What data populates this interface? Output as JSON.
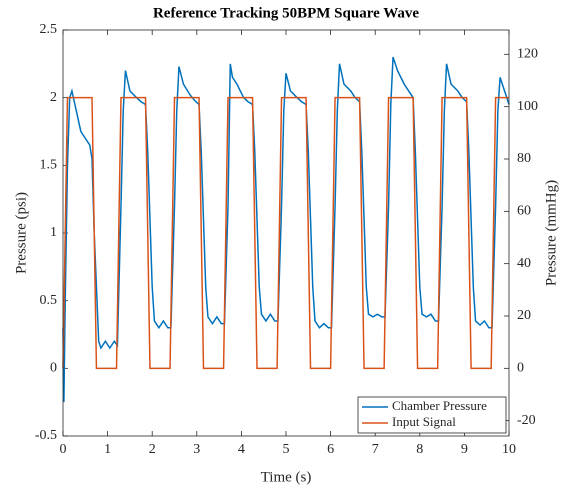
{
  "chart_data": {
    "type": "line",
    "title": "Reference Tracking 50BPM Square Wave",
    "xlabel": "Time (s)",
    "ylabel": "Pressure (psi)",
    "y2label": "Pressure (mmHg)",
    "xlim": [
      0,
      10
    ],
    "xticks": [
      0,
      1,
      2,
      3,
      4,
      5,
      6,
      7,
      8,
      9,
      10
    ],
    "ylim": [
      -0.5,
      2.5
    ],
    "yticks": [
      -0.5,
      0,
      0.5,
      1,
      1.5,
      2,
      2.5
    ],
    "y2lim": [
      -25.86,
      129.29
    ],
    "y2ticks": [
      -20,
      0,
      20,
      40,
      60,
      80,
      100,
      120
    ],
    "legend": "southeast",
    "grid": false,
    "series": [
      {
        "name": "Chamber Pressure",
        "color": "#0072BD",
        "x": [
          0,
          0.02,
          0.05,
          0.1,
          0.15,
          0.2,
          0.3,
          0.4,
          0.5,
          0.6,
          0.65,
          0.7,
          0.8,
          0.85,
          0.95,
          1.05,
          1.15,
          1.22,
          1.3,
          1.35,
          1.4,
          1.5,
          1.65,
          1.75,
          1.85,
          1.9,
          2.0,
          2.05,
          2.15,
          2.25,
          2.35,
          2.42,
          2.5,
          2.55,
          2.6,
          2.7,
          2.85,
          2.95,
          3.05,
          3.1,
          3.2,
          3.25,
          3.35,
          3.45,
          3.55,
          3.62,
          3.7,
          3.75,
          3.8,
          3.9,
          4.05,
          4.15,
          4.25,
          4.3,
          4.4,
          4.45,
          4.55,
          4.65,
          4.75,
          4.82,
          4.9,
          4.95,
          5.0,
          5.1,
          5.25,
          5.35,
          5.45,
          5.5,
          5.6,
          5.65,
          5.75,
          5.85,
          5.95,
          6.02,
          6.1,
          6.15,
          6.2,
          6.3,
          6.45,
          6.55,
          6.65,
          6.7,
          6.8,
          6.85,
          6.95,
          7.05,
          7.15,
          7.22,
          7.3,
          7.35,
          7.4,
          7.5,
          7.65,
          7.75,
          7.85,
          7.9,
          8.0,
          8.05,
          8.15,
          8.25,
          8.35,
          8.42,
          8.5,
          8.55,
          8.6,
          8.7,
          8.85,
          8.95,
          9.05,
          9.1,
          9.2,
          9.25,
          9.35,
          9.45,
          9.55,
          9.62,
          9.7,
          9.75,
          9.8,
          9.9,
          10
        ],
        "values": [
          0.3,
          -0.25,
          0.5,
          1.5,
          2.0,
          2.05,
          1.9,
          1.75,
          1.7,
          1.65,
          1.55,
          1.0,
          0.2,
          0.15,
          0.2,
          0.15,
          0.2,
          0.17,
          1.2,
          1.9,
          2.2,
          2.05,
          2.0,
          1.97,
          1.95,
          1.6,
          0.6,
          0.35,
          0.3,
          0.35,
          0.3,
          0.3,
          1.2,
          1.9,
          2.23,
          2.1,
          2.02,
          1.98,
          1.95,
          1.6,
          0.6,
          0.38,
          0.33,
          0.38,
          0.33,
          0.33,
          1.2,
          2.25,
          2.15,
          2.1,
          2.0,
          1.97,
          1.95,
          1.6,
          0.6,
          0.4,
          0.35,
          0.4,
          0.35,
          0.35,
          1.2,
          1.9,
          2.18,
          2.05,
          2.0,
          1.97,
          1.95,
          1.6,
          0.6,
          0.35,
          0.3,
          0.33,
          0.3,
          0.3,
          1.2,
          1.9,
          2.25,
          2.1,
          2.05,
          2.0,
          1.97,
          1.6,
          0.6,
          0.4,
          0.38,
          0.4,
          0.38,
          0.38,
          1.2,
          1.95,
          2.3,
          2.2,
          2.1,
          2.05,
          2.0,
          1.6,
          0.6,
          0.4,
          0.38,
          0.4,
          0.35,
          0.35,
          1.2,
          1.9,
          2.25,
          2.1,
          2.05,
          2.0,
          1.97,
          1.6,
          0.6,
          0.35,
          0.32,
          0.35,
          0.3,
          0.3,
          1.2,
          1.9,
          2.15,
          2.05,
          1.95
        ]
      },
      {
        "name": "Input Signal",
        "color": "#D95319",
        "x": [
          0,
          0.1,
          0.65,
          0.75,
          1.2,
          1.3,
          1.85,
          1.95,
          2.4,
          2.5,
          3.05,
          3.15,
          3.6,
          3.7,
          4.25,
          4.35,
          4.8,
          4.9,
          5.45,
          5.55,
          6.0,
          6.1,
          6.65,
          6.75,
          7.2,
          7.3,
          7.85,
          7.95,
          8.4,
          8.5,
          9.05,
          9.15,
          9.6,
          9.7,
          10
        ],
        "values": [
          0,
          2,
          2,
          0,
          0,
          2,
          2,
          0,
          0,
          2,
          2,
          0,
          0,
          2,
          2,
          0,
          0,
          2,
          2,
          0,
          0,
          2,
          2,
          0,
          0,
          2,
          2,
          0,
          0,
          2,
          2,
          0,
          0,
          2,
          2
        ]
      }
    ]
  }
}
